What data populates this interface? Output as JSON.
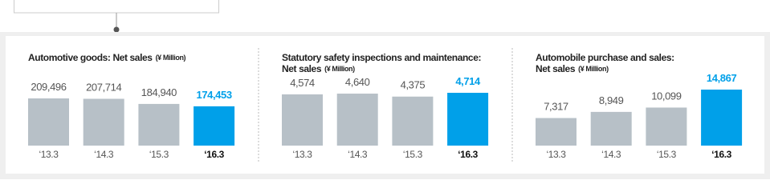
{
  "chart_data": [
    {
      "type": "bar",
      "title": [
        "Automotive goods: Net sales"
      ],
      "unit": "(¥ Million)",
      "categories": [
        "‘13.3",
        "‘14.3",
        "‘15.3",
        "‘16.3"
      ],
      "values": [
        209496,
        207714,
        184940,
        174453
      ],
      "value_labels": [
        "209,496",
        "207,714",
        "184,940",
        "174,453"
      ],
      "colors": [
        "#b7c0c7",
        "#b7c0c7",
        "#b7c0c7",
        "#00a0e9"
      ]
    },
    {
      "type": "bar",
      "title": [
        "Statutory safety inspections and maintenance:",
        "Net sales"
      ],
      "unit": "(¥ Million)",
      "categories": [
        "‘13.3",
        "‘14.3",
        "‘15.3",
        "‘16.3"
      ],
      "values": [
        4574,
        4640,
        4375,
        4714
      ],
      "value_labels": [
        "4,574",
        "4,640",
        "4,375",
        "4,714"
      ],
      "colors": [
        "#b7c0c7",
        "#b7c0c7",
        "#b7c0c7",
        "#00a0e9"
      ]
    },
    {
      "type": "bar",
      "title": [
        "Automobile purchase and sales:",
        "Net sales"
      ],
      "unit": "(¥ Million)",
      "categories": [
        "‘13.3",
        "‘14.3",
        "‘15.3",
        "‘16.3"
      ],
      "values": [
        7317,
        8949,
        10099,
        14867
      ],
      "value_labels": [
        "7,317",
        "8,949",
        "10,099",
        "14,867"
      ],
      "colors": [
        "#b7c0c7",
        "#b7c0c7",
        "#b7c0c7",
        "#00a0e9"
      ]
    }
  ]
}
